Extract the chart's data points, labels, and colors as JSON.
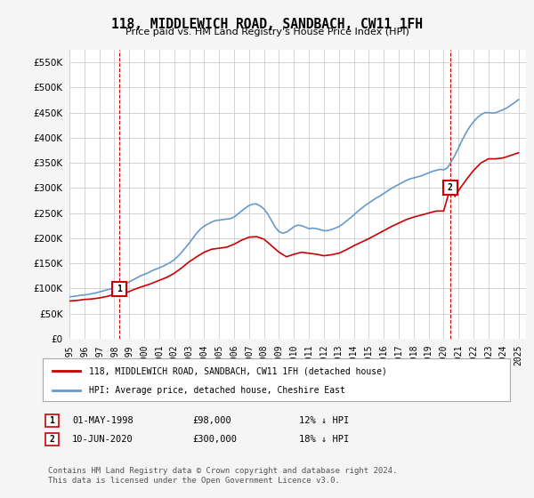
{
  "title": "118, MIDDLEWICH ROAD, SANDBACH, CW11 1FH",
  "subtitle": "Price paid vs. HM Land Registry's House Price Index (HPI)",
  "ylabel_ticks": [
    "£0",
    "£50K",
    "£100K",
    "£150K",
    "£200K",
    "£250K",
    "£300K",
    "£350K",
    "£400K",
    "£450K",
    "£500K",
    "£550K"
  ],
  "ytick_values": [
    0,
    50000,
    100000,
    150000,
    200000,
    250000,
    300000,
    350000,
    400000,
    450000,
    500000,
    550000
  ],
  "ylim": [
    0,
    575000
  ],
  "xlim_start": 1995.0,
  "xlim_end": 2025.5,
  "xtick_years": [
    1995,
    1996,
    1997,
    1998,
    1999,
    2000,
    2001,
    2002,
    2003,
    2004,
    2005,
    2006,
    2007,
    2008,
    2009,
    2010,
    2011,
    2012,
    2013,
    2014,
    2015,
    2016,
    2017,
    2018,
    2019,
    2020,
    2021,
    2022,
    2023,
    2024,
    2025
  ],
  "legend_line1": "118, MIDDLEWICH ROAD, SANDBACH, CW11 1FH (detached house)",
  "legend_line2": "HPI: Average price, detached house, Cheshire East",
  "sale1_label": "1",
  "sale1_date": "01-MAY-1998",
  "sale1_price": "£98,000",
  "sale1_hpi": "12% ↓ HPI",
  "sale1_x": 1998.33,
  "sale1_y": 98000,
  "sale2_label": "2",
  "sale2_date": "10-JUN-2020",
  "sale2_price": "£300,000",
  "sale2_hpi": "18% ↓ HPI",
  "sale2_x": 2020.44,
  "sale2_y": 300000,
  "line_color_property": "#cc0000",
  "line_color_hpi": "#6699cc",
  "footnote": "Contains HM Land Registry data © Crown copyright and database right 2024.\nThis data is licensed under the Open Government Licence v3.0.",
  "bg_color": "#f5f5f5",
  "plot_bg_color": "#ffffff",
  "hpi_data_x": [
    1995.0,
    1995.25,
    1995.5,
    1995.75,
    1996.0,
    1996.25,
    1996.5,
    1996.75,
    1997.0,
    1997.25,
    1997.5,
    1997.75,
    1998.0,
    1998.25,
    1998.5,
    1998.75,
    1999.0,
    1999.25,
    1999.5,
    1999.75,
    2000.0,
    2000.25,
    2000.5,
    2000.75,
    2001.0,
    2001.25,
    2001.5,
    2001.75,
    2002.0,
    2002.25,
    2002.5,
    2002.75,
    2003.0,
    2003.25,
    2003.5,
    2003.75,
    2004.0,
    2004.25,
    2004.5,
    2004.75,
    2005.0,
    2005.25,
    2005.5,
    2005.75,
    2006.0,
    2006.25,
    2006.5,
    2006.75,
    2007.0,
    2007.25,
    2007.5,
    2007.75,
    2008.0,
    2008.25,
    2008.5,
    2008.75,
    2009.0,
    2009.25,
    2009.5,
    2009.75,
    2010.0,
    2010.25,
    2010.5,
    2010.75,
    2011.0,
    2011.25,
    2011.5,
    2011.75,
    2012.0,
    2012.25,
    2012.5,
    2012.75,
    2013.0,
    2013.25,
    2013.5,
    2013.75,
    2014.0,
    2014.25,
    2014.5,
    2014.75,
    2015.0,
    2015.25,
    2015.5,
    2015.75,
    2016.0,
    2016.25,
    2016.5,
    2016.75,
    2017.0,
    2017.25,
    2017.5,
    2017.75,
    2018.0,
    2018.25,
    2018.5,
    2018.75,
    2019.0,
    2019.25,
    2019.5,
    2019.75,
    2020.0,
    2020.25,
    2020.5,
    2020.75,
    2021.0,
    2021.25,
    2021.5,
    2021.75,
    2022.0,
    2022.25,
    2022.5,
    2022.75,
    2023.0,
    2023.25,
    2023.5,
    2023.75,
    2024.0,
    2024.25,
    2024.5,
    2024.75,
    2025.0
  ],
  "hpi_data_y": [
    83000,
    84000,
    85000,
    86500,
    87000,
    88000,
    89500,
    91000,
    93000,
    95000,
    97000,
    99000,
    101000,
    103000,
    106000,
    109000,
    113000,
    117000,
    121000,
    125000,
    128000,
    131000,
    135000,
    138000,
    141000,
    144000,
    148000,
    152000,
    157000,
    164000,
    172000,
    181000,
    190000,
    200000,
    210000,
    218000,
    224000,
    228000,
    232000,
    235000,
    236000,
    237000,
    238000,
    239000,
    242000,
    248000,
    254000,
    260000,
    265000,
    268000,
    268000,
    264000,
    258000,
    248000,
    235000,
    222000,
    213000,
    210000,
    212000,
    217000,
    223000,
    226000,
    225000,
    222000,
    219000,
    220000,
    219000,
    217000,
    215000,
    215000,
    217000,
    220000,
    223000,
    228000,
    234000,
    240000,
    246000,
    253000,
    259000,
    265000,
    270000,
    275000,
    280000,
    284000,
    289000,
    294000,
    299000,
    303000,
    307000,
    311000,
    315000,
    318000,
    320000,
    322000,
    324000,
    327000,
    330000,
    333000,
    335000,
    337000,
    336000,
    340000,
    352000,
    365000,
    380000,
    396000,
    410000,
    422000,
    432000,
    440000,
    446000,
    450000,
    450000,
    449000,
    450000,
    453000,
    456000,
    460000,
    465000,
    470000,
    476000
  ],
  "property_data_x": [
    1995.0,
    1995.5,
    1996.0,
    1996.5,
    1997.0,
    1997.5,
    1998.0,
    1998.33,
    1998.75,
    1999.5,
    2000.0,
    2000.5,
    2001.0,
    2001.5,
    2002.0,
    2002.5,
    2003.0,
    2003.5,
    2004.0,
    2004.5,
    2005.0,
    2005.5,
    2006.0,
    2006.5,
    2007.0,
    2007.5,
    2008.0,
    2008.5,
    2009.0,
    2009.5,
    2010.0,
    2010.5,
    2011.0,
    2011.5,
    2012.0,
    2012.5,
    2013.0,
    2013.5,
    2014.0,
    2014.5,
    2015.0,
    2015.5,
    2016.0,
    2016.5,
    2017.0,
    2017.5,
    2018.0,
    2018.5,
    2019.0,
    2019.5,
    2020.0,
    2020.44,
    2020.75,
    2021.0,
    2021.5,
    2022.0,
    2022.5,
    2023.0,
    2023.5,
    2024.0,
    2024.5,
    2025.0
  ],
  "property_data_y": [
    75000,
    76000,
    78000,
    79000,
    81000,
    84000,
    88000,
    98000,
    91000,
    100000,
    105000,
    110000,
    116000,
    122000,
    130000,
    141000,
    153000,
    163000,
    172000,
    178000,
    180000,
    182000,
    188000,
    196000,
    202000,
    203000,
    198000,
    185000,
    172000,
    163000,
    168000,
    172000,
    170000,
    168000,
    165000,
    167000,
    170000,
    177000,
    185000,
    192000,
    199000,
    207000,
    215000,
    223000,
    230000,
    237000,
    242000,
    246000,
    250000,
    254000,
    254000,
    300000,
    283000,
    295000,
    316000,
    335000,
    350000,
    358000,
    358000,
    360000,
    365000,
    370000
  ]
}
